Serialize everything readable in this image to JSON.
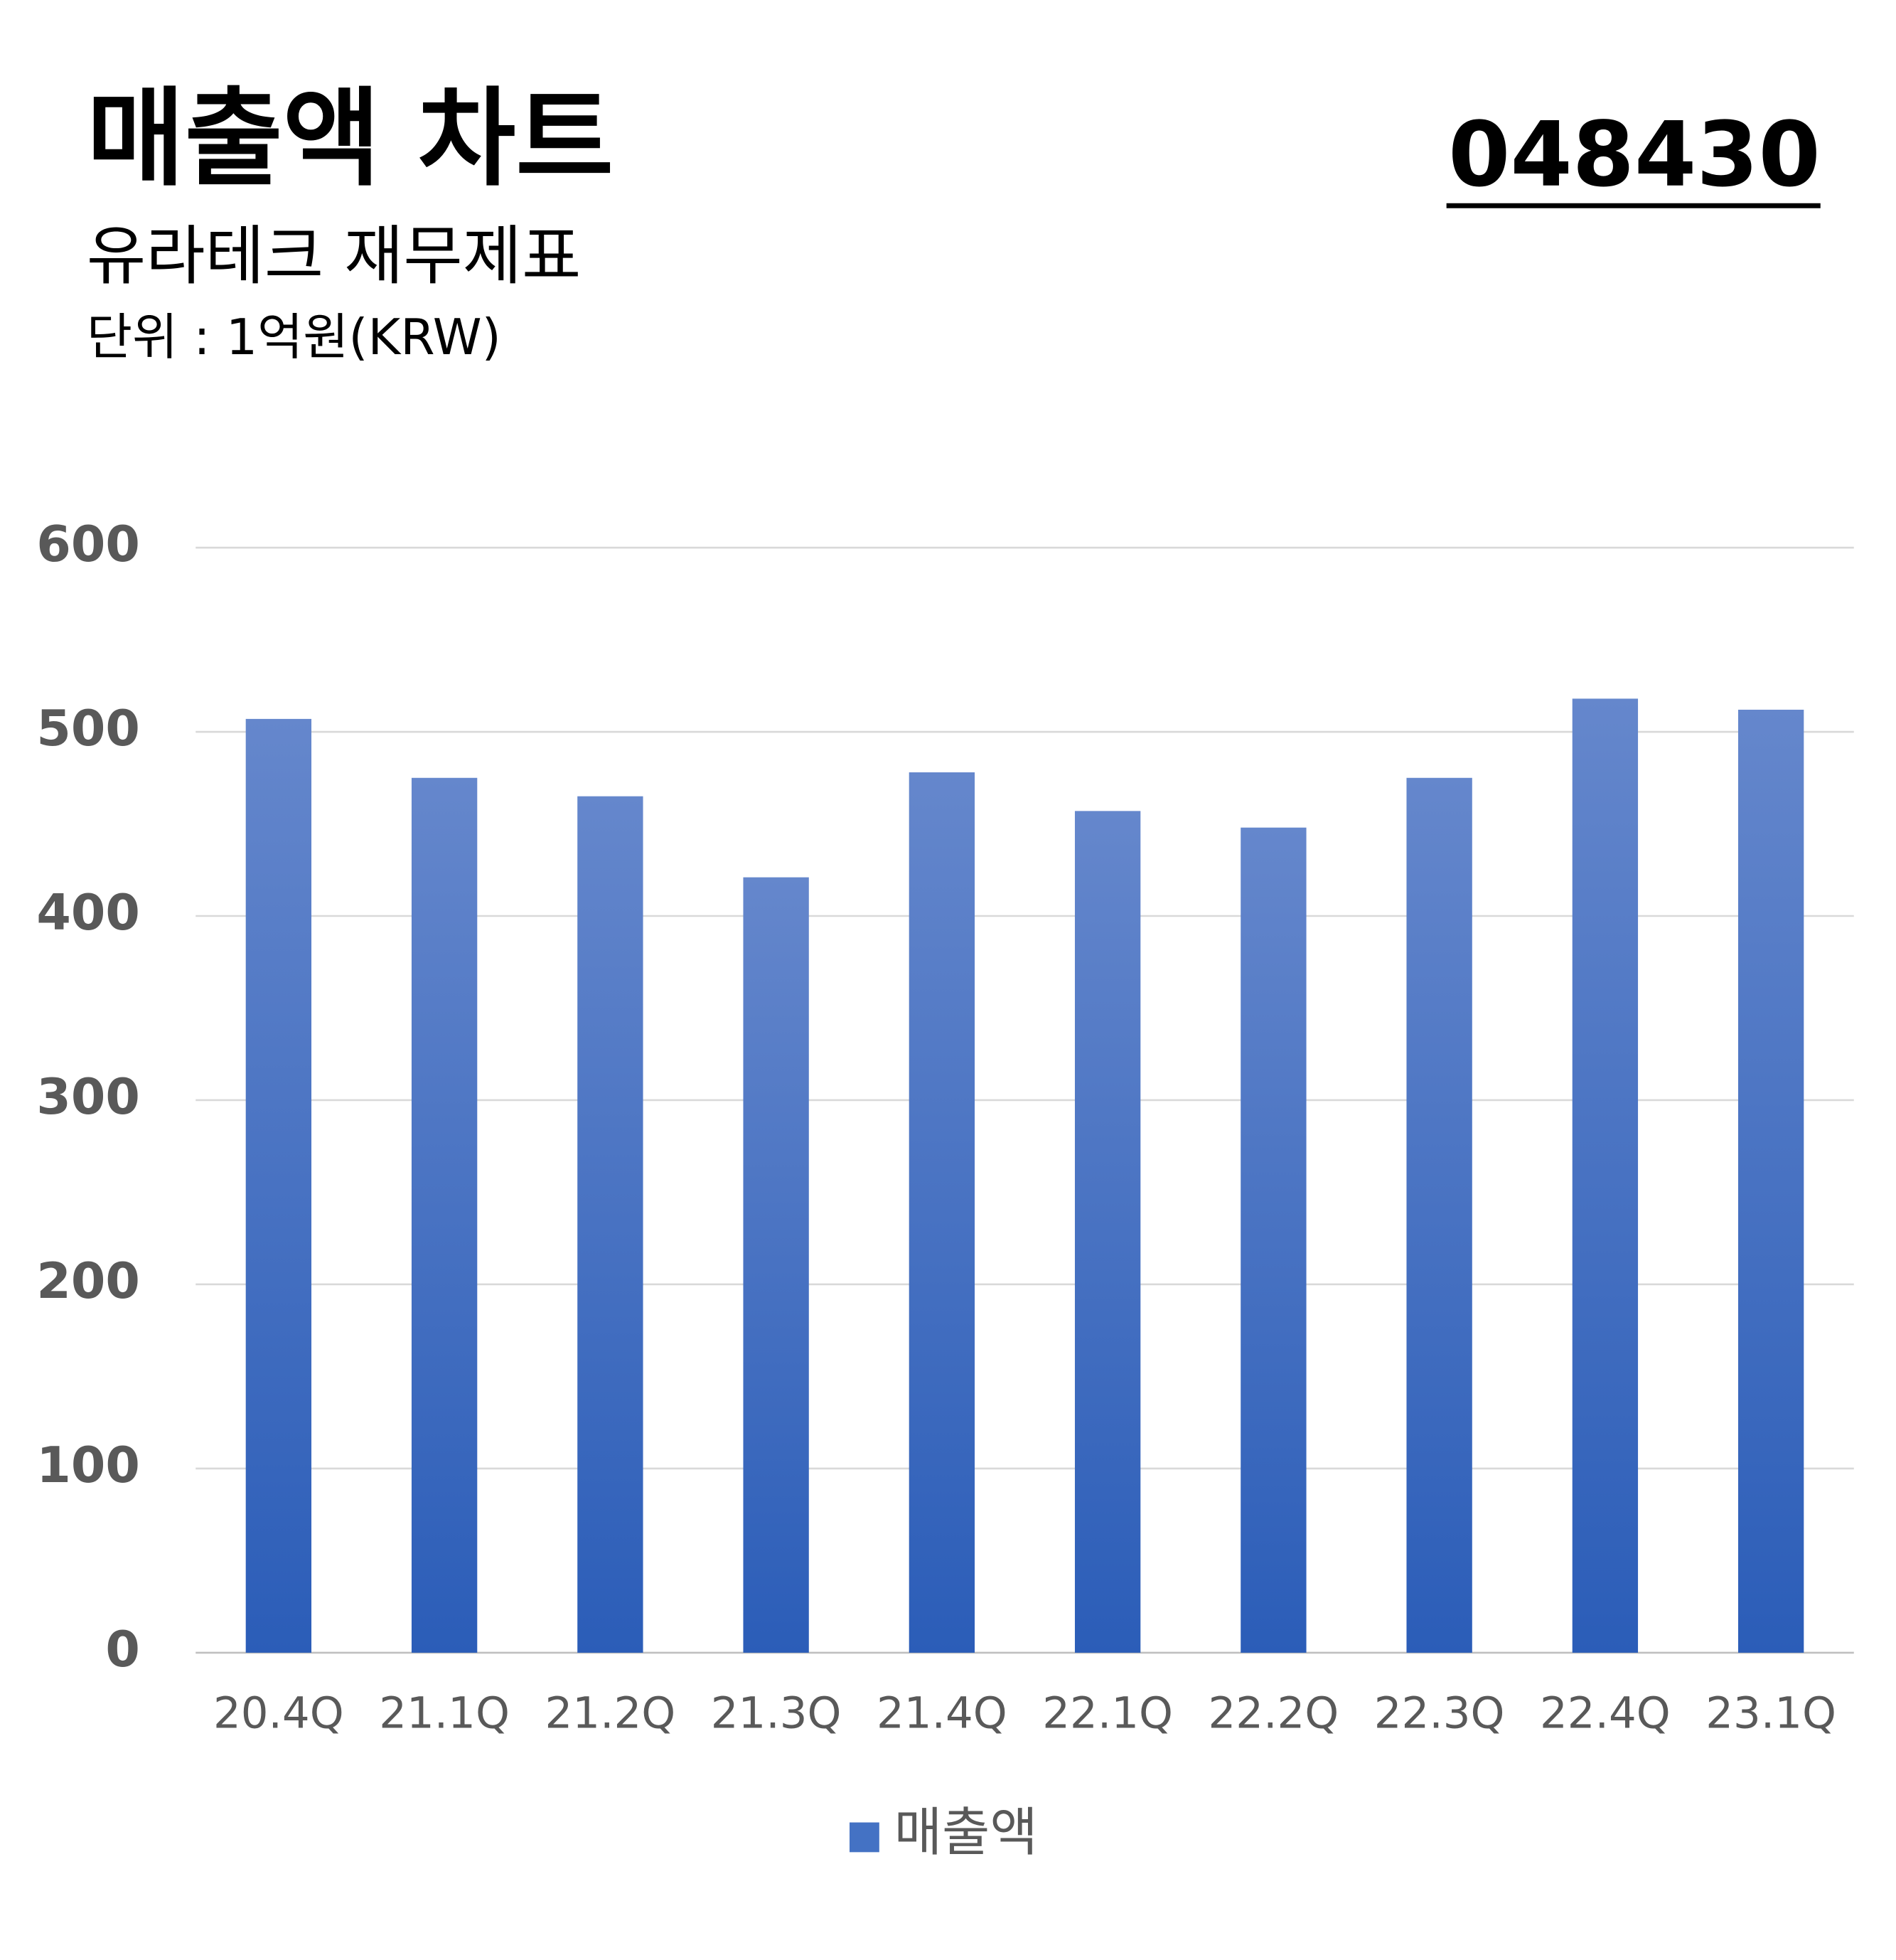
{
  "chart_data": {
    "type": "bar",
    "title": "매출액 차트",
    "subtitle": "유라테크 재무제표",
    "unit": "단위 : 1억원(KRW)",
    "code": "048430",
    "categories": [
      "20.4Q",
      "21.1Q",
      "21.2Q",
      "21.3Q",
      "21.4Q",
      "22.1Q",
      "22.2Q",
      "22.3Q",
      "22.4Q",
      "23.1Q"
    ],
    "series": [
      {
        "name": "매출액",
        "color": "#4472c4",
        "values": [
          507,
          475,
          465,
          421,
          478,
          457,
          448,
          475,
          518,
          512
        ]
      }
    ],
    "ylim": [
      0,
      600
    ],
    "yticks": [
      0,
      100,
      200,
      300,
      400,
      500,
      600
    ],
    "grid": true,
    "legend": "bottom"
  }
}
